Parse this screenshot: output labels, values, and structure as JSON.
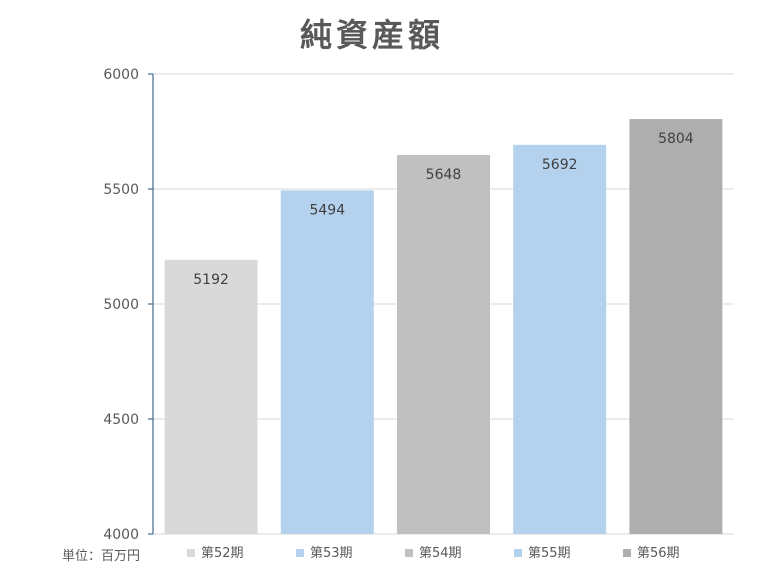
{
  "chart_data": {
    "type": "bar",
    "title": "純資産額",
    "unit_label": "単位：百万円",
    "categories": [
      "第52期",
      "第53期",
      "第54期",
      "第55期",
      "第56期"
    ],
    "values": [
      5192,
      5494,
      5648,
      5692,
      5804
    ],
    "colors": [
      "#d9d9d9",
      "#b4d2ee",
      "#c0c0c0",
      "#b4d2ee",
      "#aeaeae"
    ],
    "ylim": [
      4000,
      6000
    ],
    "yticks": [
      4000,
      4500,
      5000,
      5500,
      6000
    ],
    "grid": true,
    "legend_position": "bottom"
  }
}
